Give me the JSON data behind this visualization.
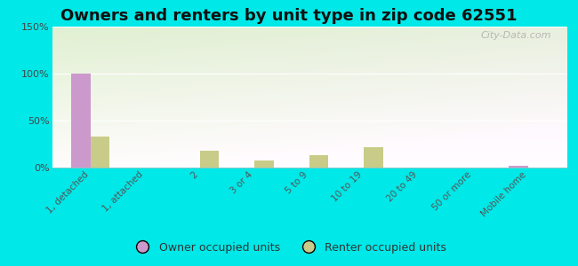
{
  "title": "Owners and renters by unit type in zip code 62551",
  "categories": [
    "1, detached",
    "1, attached",
    "2",
    "3 or 4",
    "5 to 9",
    "10 to 19",
    "20 to 49",
    "50 or more",
    "Mobile home"
  ],
  "owner_values": [
    100,
    0,
    0,
    0,
    0,
    0,
    0,
    0,
    2
  ],
  "renter_values": [
    33,
    0,
    18,
    8,
    13,
    22,
    0,
    0,
    0
  ],
  "owner_color": "#cc99cc",
  "renter_color": "#c8cc88",
  "cyan_bg": "#00e8e8",
  "ylim": [
    0,
    150
  ],
  "yticks": [
    0,
    50,
    100,
    150
  ],
  "ytick_labels": [
    "0%",
    "50%",
    "100%",
    "150%"
  ],
  "bar_width": 0.35,
  "title_fontsize": 13,
  "legend_label_owner": "Owner occupied units",
  "legend_label_renter": "Renter occupied units",
  "watermark": "City-Data.com",
  "grid_color": "#ddddcc"
}
